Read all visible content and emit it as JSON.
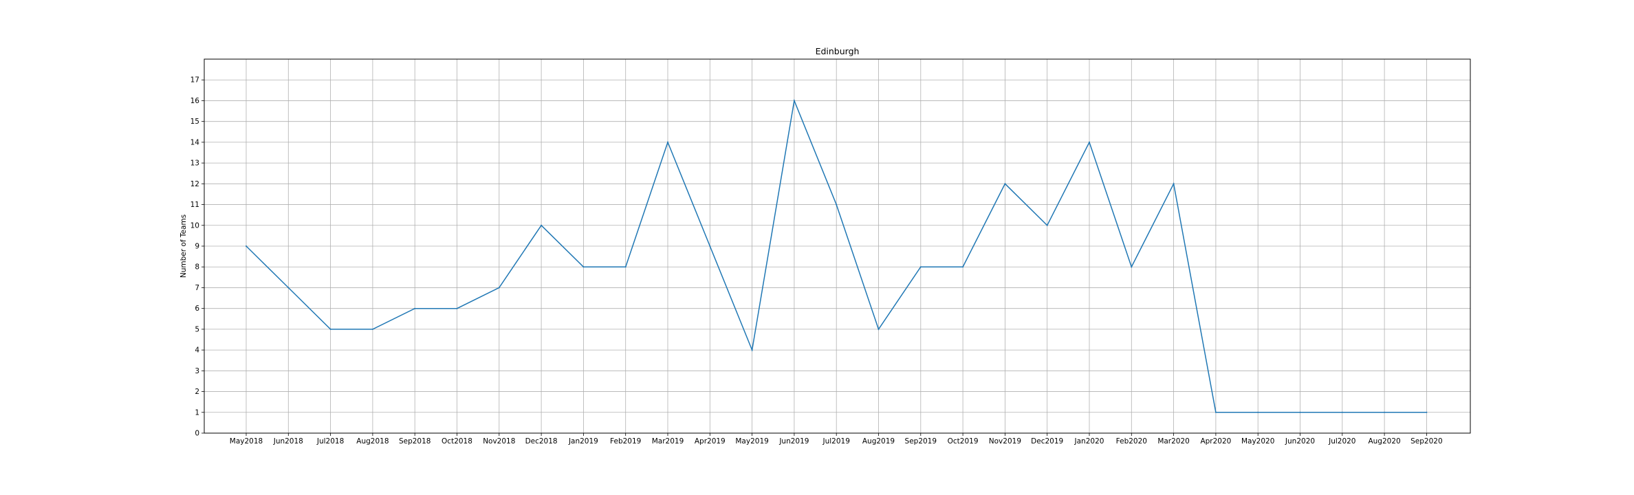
{
  "chart_data": {
    "type": "line",
    "title": "Edinburgh",
    "xlabel": "",
    "ylabel": "Number of Teams",
    "categories": [
      "May2018",
      "Jun2018",
      "Jul2018",
      "Aug2018",
      "Sep2018",
      "Oct2018",
      "Nov2018",
      "Dec2018",
      "Jan2019",
      "Feb2019",
      "Mar2019",
      "Apr2019",
      "May2019",
      "Jun2019",
      "Jul2019",
      "Aug2019",
      "Sep2019",
      "Oct2019",
      "Nov2019",
      "Dec2019",
      "Jan2020",
      "Feb2020",
      "Mar2020",
      "Apr2020",
      "May2020",
      "Jun2020",
      "Jul2020",
      "Aug2020",
      "Sep2020"
    ],
    "series": [
      {
        "values": [
          9,
          7,
          5,
          5,
          6,
          6,
          7,
          10,
          8,
          8,
          14,
          9,
          4,
          16,
          11,
          5,
          8,
          8,
          12,
          10,
          14,
          8,
          12,
          1,
          1,
          1,
          1,
          1,
          1
        ]
      }
    ],
    "yticks": [
      0,
      1,
      2,
      3,
      4,
      5,
      6,
      7,
      8,
      9,
      10,
      11,
      12,
      13,
      14,
      15,
      16,
      17
    ],
    "ylim": [
      0,
      18
    ],
    "grid": true,
    "line_color": "#1f77b4"
  }
}
